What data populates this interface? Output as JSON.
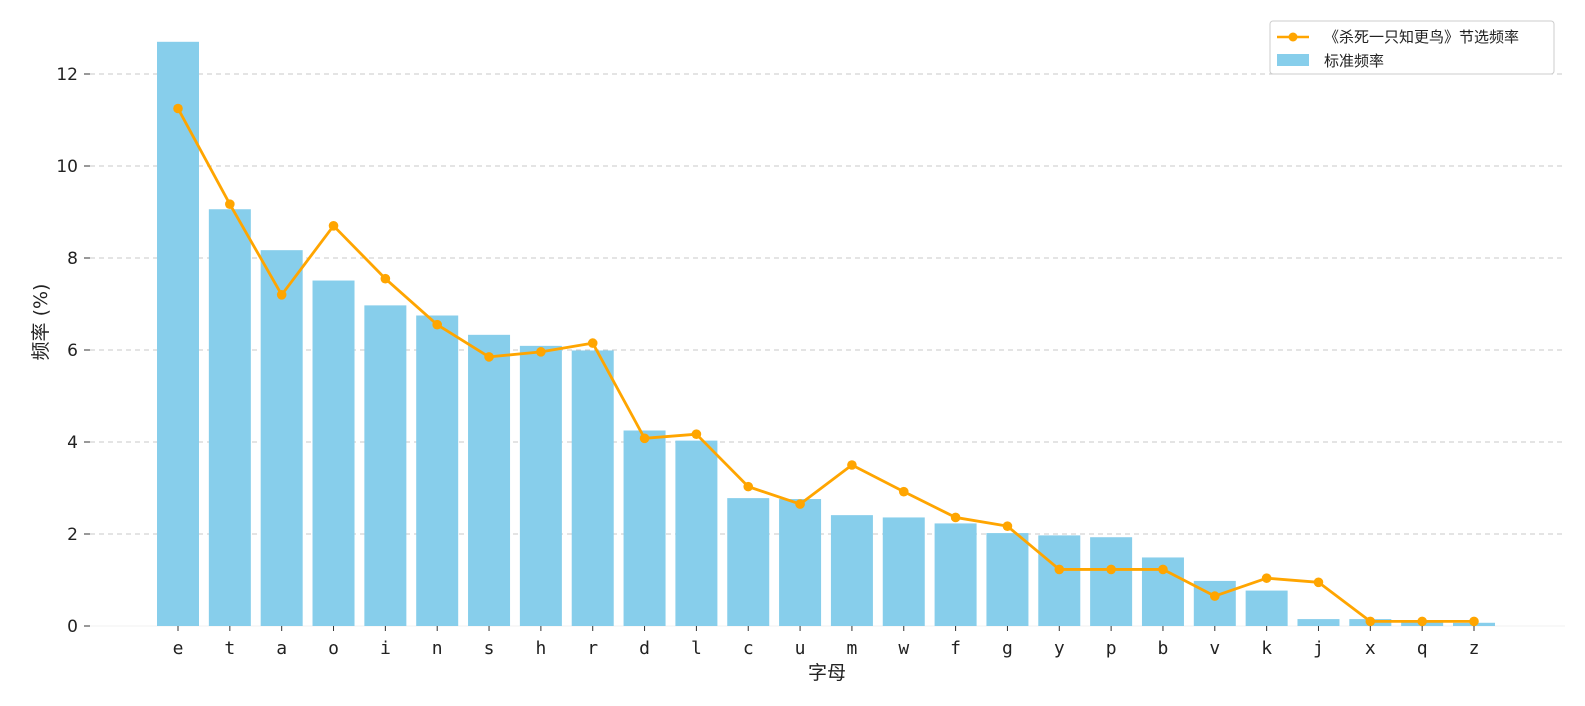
{
  "chart_data": {
    "type": "bar",
    "title": "",
    "xlabel": "字母",
    "ylabel": "频率 (%)",
    "ylim": [
      0,
      13.3
    ],
    "yticks": [
      0,
      2,
      4,
      6,
      8,
      10,
      12
    ],
    "grid": "horizontal dashed",
    "legend_position": "top-right",
    "categories": [
      "e",
      "t",
      "a",
      "o",
      "i",
      "n",
      "s",
      "h",
      "r",
      "d",
      "l",
      "c",
      "u",
      "m",
      "w",
      "f",
      "g",
      "y",
      "p",
      "b",
      "v",
      "k",
      "j",
      "x",
      "q",
      "z"
    ],
    "series": [
      {
        "name": "标准频率",
        "kind": "bar",
        "color": "#87CEEB",
        "values": [
          12.7,
          9.06,
          8.17,
          7.51,
          6.97,
          6.75,
          6.33,
          6.09,
          5.99,
          4.25,
          4.03,
          2.78,
          2.76,
          2.41,
          2.36,
          2.23,
          2.02,
          1.97,
          1.93,
          1.49,
          0.98,
          0.77,
          0.15,
          0.15,
          0.1,
          0.07
        ]
      },
      {
        "name": "《杀死一只知更鸟》节选频率",
        "kind": "line",
        "color": "#FFA500",
        "values": [
          11.25,
          9.17,
          7.2,
          8.7,
          7.55,
          6.55,
          5.85,
          5.96,
          6.15,
          4.08,
          4.17,
          3.03,
          2.65,
          3.5,
          2.92,
          2.36,
          2.17,
          1.23,
          1.23,
          1.23,
          0.65,
          1.04,
          0.95,
          0.1,
          0.1,
          0.1
        ]
      }
    ]
  }
}
